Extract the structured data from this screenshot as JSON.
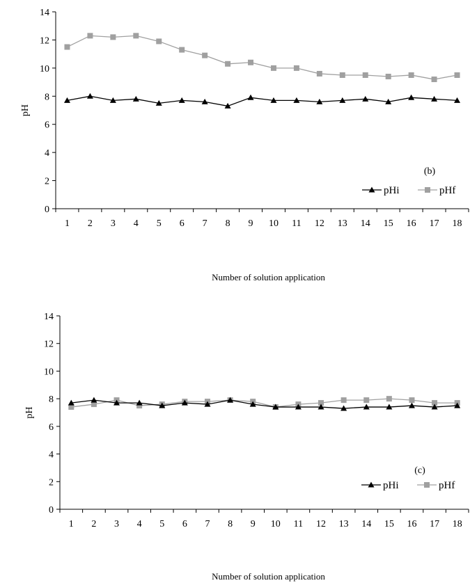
{
  "chart_data": [
    {
      "type": "line",
      "panel_label": "(b)",
      "xlabel": "Number of solution application",
      "ylabel": "pH",
      "ylim": [
        0,
        14
      ],
      "yticks": [
        0,
        2,
        4,
        6,
        8,
        10,
        12,
        14
      ],
      "categories": [
        1,
        2,
        3,
        4,
        5,
        6,
        7,
        8,
        9,
        10,
        11,
        12,
        13,
        14,
        15,
        16,
        17,
        18
      ],
      "legend_position": "bottom-right",
      "grid": false,
      "series": [
        {
          "name": "pHi",
          "marker": "triangle",
          "color": "#000000",
          "values": [
            7.7,
            8.0,
            7.7,
            7.8,
            7.5,
            7.7,
            7.6,
            7.3,
            7.9,
            7.7,
            7.7,
            7.6,
            7.7,
            7.8,
            7.6,
            7.9,
            7.8,
            7.7
          ]
        },
        {
          "name": "pHf",
          "marker": "square",
          "color": "#a0a0a0",
          "values": [
            11.5,
            12.3,
            12.2,
            12.3,
            11.9,
            11.3,
            10.9,
            10.3,
            10.4,
            10.0,
            10.0,
            9.6,
            9.5,
            9.5,
            9.4,
            9.5,
            9.2,
            9.5
          ]
        }
      ]
    },
    {
      "type": "line",
      "panel_label": "(c)",
      "xlabel": "Number of solution application",
      "ylabel": "pH",
      "ylim": [
        0,
        14
      ],
      "yticks": [
        0,
        2,
        4,
        6,
        8,
        10,
        12,
        14
      ],
      "categories": [
        1,
        2,
        3,
        4,
        5,
        6,
        7,
        8,
        9,
        10,
        11,
        12,
        13,
        14,
        15,
        16,
        17,
        18
      ],
      "legend_position": "bottom-right",
      "grid": false,
      "series": [
        {
          "name": "pHi",
          "marker": "triangle",
          "color": "#000000",
          "values": [
            7.7,
            7.9,
            7.7,
            7.7,
            7.5,
            7.7,
            7.6,
            7.9,
            7.6,
            7.4,
            7.4,
            7.4,
            7.3,
            7.4,
            7.4,
            7.5,
            7.4,
            7.5
          ]
        },
        {
          "name": "pHf",
          "marker": "square",
          "color": "#a0a0a0",
          "values": [
            7.4,
            7.6,
            7.9,
            7.5,
            7.6,
            7.8,
            7.8,
            7.9,
            7.8,
            7.4,
            7.6,
            7.7,
            7.9,
            7.9,
            8.0,
            7.9,
            7.7,
            7.7
          ]
        }
      ]
    }
  ]
}
